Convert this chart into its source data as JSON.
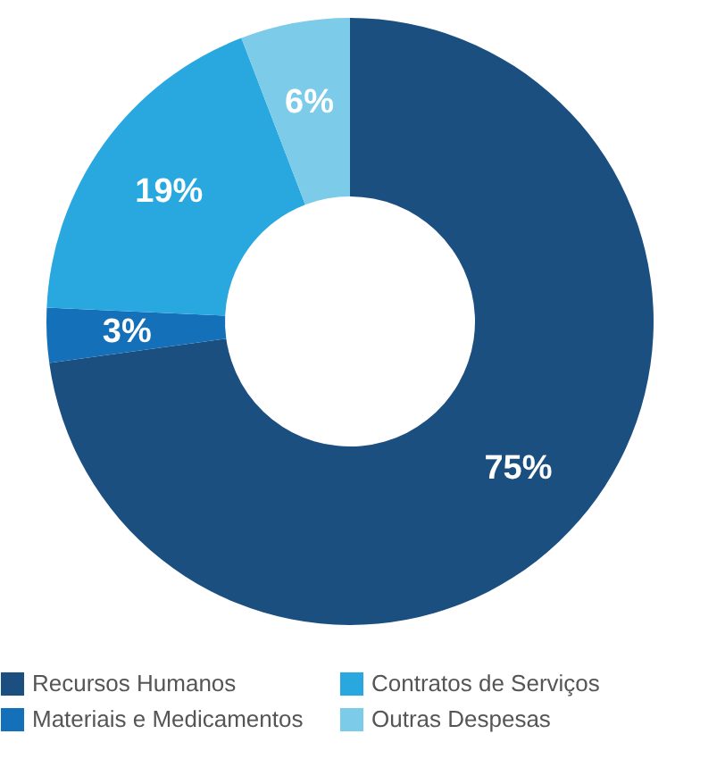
{
  "chart_data": {
    "type": "donut",
    "categories": [
      "Recursos Humanos",
      "Materiais e Medicamentos",
      "Contratos de Serviços",
      "Outras Despesas"
    ],
    "values": [
      75,
      3,
      19,
      6
    ],
    "colors": [
      "#1b4f80",
      "#1470b8",
      "#29a8e0",
      "#7ccbe8"
    ],
    "value_labels": [
      "75%",
      "3%",
      "19%",
      "6%"
    ],
    "legend": "bottom"
  }
}
